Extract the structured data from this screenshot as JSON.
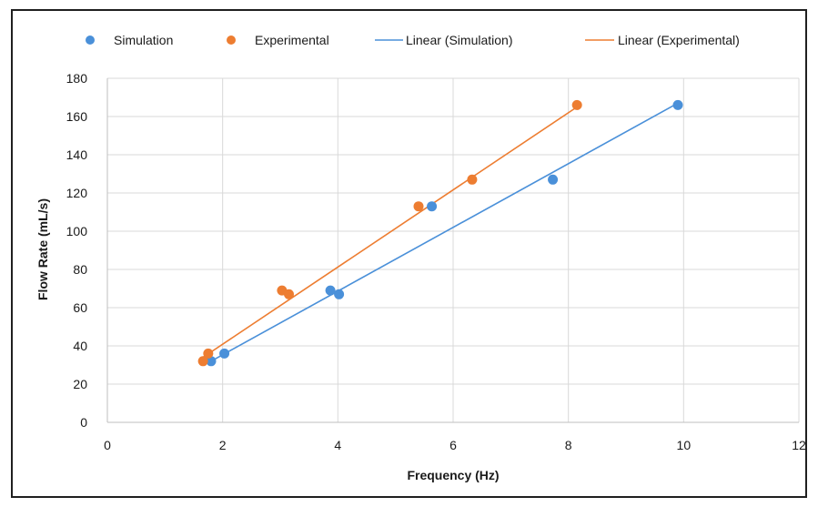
{
  "chart_data": {
    "type": "scatter",
    "title": "",
    "xlabel": "Frequency (Hz)",
    "ylabel": "Flow Rate (mL/s)",
    "xlim": [
      0,
      12
    ],
    "ylim": [
      0,
      180
    ],
    "x_ticks": [
      0,
      2,
      4,
      6,
      8,
      10,
      12
    ],
    "y_ticks": [
      0,
      20,
      40,
      60,
      80,
      100,
      120,
      140,
      160,
      180
    ],
    "grid": true,
    "legend_position": "top",
    "series": [
      {
        "name": "Simulation",
        "color": "#4a90d9",
        "points": [
          [
            1.8,
            32
          ],
          [
            2.03,
            36
          ],
          [
            3.87,
            69
          ],
          [
            4.02,
            67
          ],
          [
            5.63,
            113
          ],
          [
            7.73,
            127
          ],
          [
            9.9,
            166
          ]
        ]
      },
      {
        "name": "Experimental",
        "color": "#ed7d31",
        "points": [
          [
            1.66,
            32
          ],
          [
            1.75,
            36
          ],
          [
            3.03,
            69
          ],
          [
            3.15,
            67
          ],
          [
            5.4,
            113
          ],
          [
            6.33,
            127
          ],
          [
            8.15,
            166
          ]
        ]
      }
    ],
    "trendlines": [
      {
        "name": "Linear (Simulation)",
        "color": "#4a90d9",
        "from": [
          1.8,
          32
        ],
        "to": [
          9.9,
          167
        ]
      },
      {
        "name": "Linear (Experimental)",
        "color": "#ed7d31",
        "from": [
          1.66,
          34
        ],
        "to": [
          8.15,
          165
        ]
      }
    ]
  }
}
